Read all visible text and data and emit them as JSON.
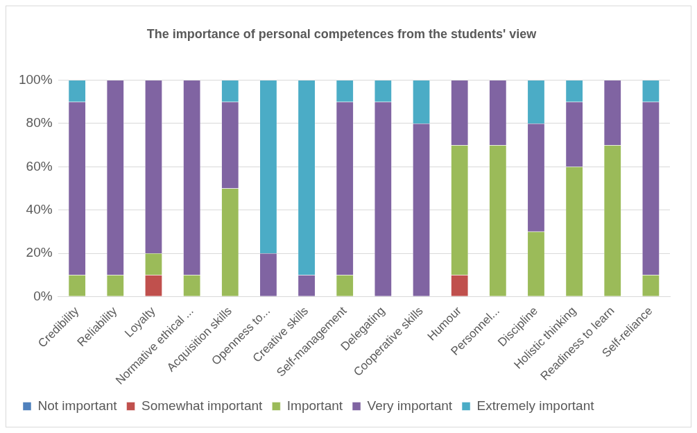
{
  "chart_data": {
    "type": "bar",
    "stacked": true,
    "title": "The importance of personal competences from the students' view",
    "categories": [
      "Credibility",
      "Reliability",
      "Loyalty",
      "Normative ethical ...",
      "Acquisition skills",
      "Openness to...",
      "Creative skills",
      "Self-management",
      "Delegating",
      "Cooperative skills",
      "Humour",
      "Personnel...",
      "Discipline",
      "Holistic thinking",
      "Readiness to learn",
      "Self-reliance"
    ],
    "series": [
      {
        "name": "Not important",
        "color": "#4f81bd",
        "values": [
          0,
          0,
          0,
          0,
          0,
          0,
          0,
          0,
          0,
          0,
          0,
          0,
          0,
          0,
          0,
          0
        ]
      },
      {
        "name": "Somewhat important",
        "color": "#c0504d",
        "values": [
          0,
          0,
          10,
          0,
          0,
          0,
          0,
          0,
          0,
          0,
          10,
          0,
          0,
          0,
          0,
          0
        ]
      },
      {
        "name": "Important",
        "color": "#9bbb59",
        "values": [
          10,
          10,
          10,
          10,
          50,
          0,
          0,
          10,
          0,
          0,
          60,
          70,
          30,
          60,
          70,
          10
        ]
      },
      {
        "name": "Very important",
        "color": "#8064a2",
        "values": [
          80,
          90,
          80,
          90,
          40,
          20,
          10,
          80,
          90,
          80,
          30,
          30,
          50,
          30,
          30,
          80
        ]
      },
      {
        "name": "Extremely important",
        "color": "#4bacc6",
        "values": [
          10,
          0,
          0,
          0,
          10,
          80,
          90,
          10,
          10,
          20,
          0,
          0,
          20,
          10,
          0,
          10
        ]
      }
    ],
    "ylim": [
      0,
      100
    ],
    "yticks": [
      {
        "value": 0,
        "label": "0%"
      },
      {
        "value": 20,
        "label": "20%"
      },
      {
        "value": 40,
        "label": "40%"
      },
      {
        "value": 60,
        "label": "60%"
      },
      {
        "value": 80,
        "label": "80%"
      },
      {
        "value": 100,
        "label": "100%"
      }
    ],
    "grid": "y",
    "legend": "bottom"
  }
}
